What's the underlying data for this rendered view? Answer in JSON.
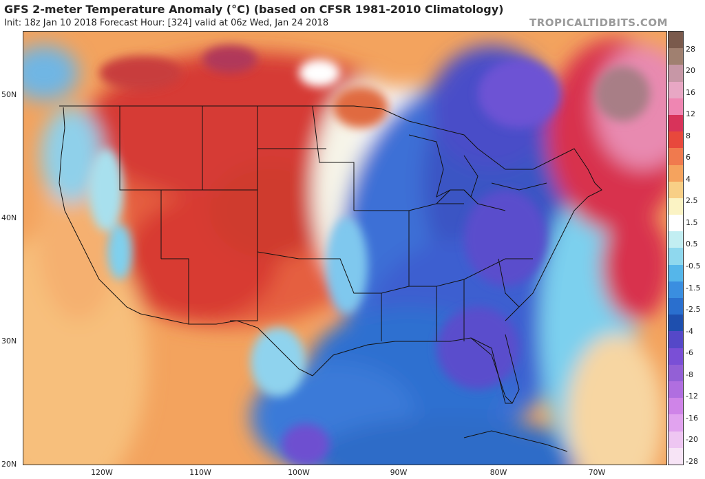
{
  "header": {
    "title": "GFS 2-meter Temperature Anomaly (°C) (based on CFSR 1981-2010 Climatology)",
    "subtitle": "Init: 18z Jan 10 2018   Forecast Hour: [324]   valid at 06z Wed, Jan 24 2018",
    "brand": "TROPICALTIDBITS.COM"
  },
  "axes": {
    "lat_labels": [
      "50N",
      "40N",
      "30N",
      "20N"
    ],
    "lon_labels": [
      "120W",
      "110W",
      "100W",
      "90W",
      "80W",
      "70W"
    ]
  },
  "colorbar": {
    "labels": [
      "28",
      "20",
      "16",
      "12",
      "8",
      "6",
      "4",
      "2.5",
      "1.5",
      "0.5",
      "-0.5",
      "-1.5",
      "-2.5",
      "-4",
      "-6",
      "-8",
      "-12",
      "-16",
      "-20",
      "-28"
    ],
    "colors": [
      "#7a5a4c",
      "#a08070",
      "#c797a6",
      "#e8a7c4",
      "#ef86b2",
      "#d8335a",
      "#e8483c",
      "#f07a4e",
      "#f5a35e",
      "#f8cf86",
      "#fbf3c4",
      "#ffffff",
      "#c2eef2",
      "#8fd8ee",
      "#55b6ea",
      "#3a8ee0",
      "#2a6fce",
      "#1e4fae",
      "#5548c8",
      "#7a4fd6",
      "#9360d6",
      "#b06ee0",
      "#cf84e8",
      "#e1a3ef",
      "#eec6f2",
      "#f7e4f6"
    ]
  },
  "colors": {
    "warm_anomaly": "#e8483c",
    "cold_anomaly": "#3a6fd8",
    "border_lines": "#111111"
  }
}
